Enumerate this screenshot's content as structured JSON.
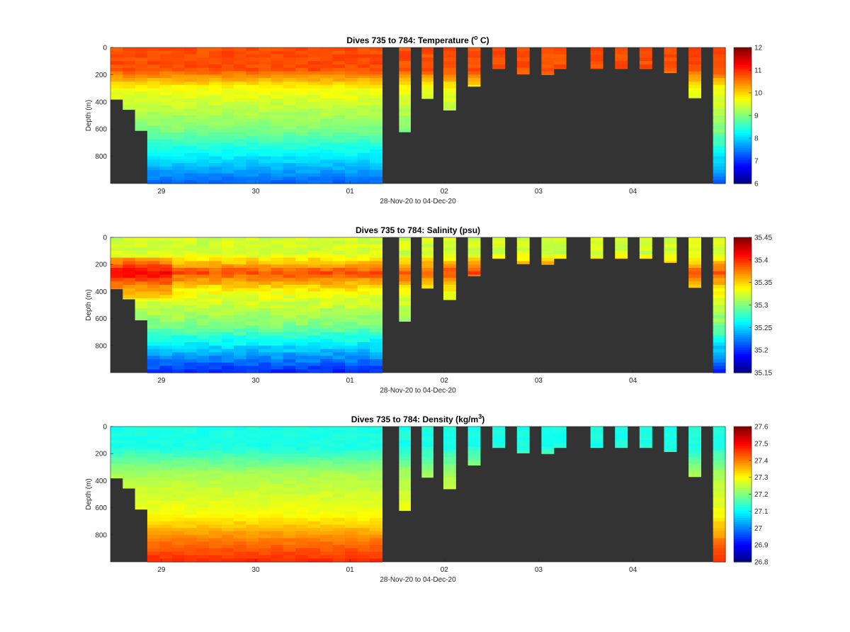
{
  "figure": {
    "background": "#ffffff",
    "no_data_color": "#333333"
  },
  "chart_data": [
    {
      "type": "heatmap",
      "id": "temperature",
      "title_prefix": "Dives 735 to 784: Temperature (",
      "title_sup": "o",
      "title_suffix": " C)",
      "xlabel": "28-Nov-20 to 04-Dec-20",
      "ylabel": "Depth (m)",
      "xlim": [
        -0.54,
        5.98
      ],
      "ylim": [
        1000,
        0
      ],
      "x_ticks": [
        {
          "value": 0,
          "label": "29"
        },
        {
          "value": 1,
          "label": "30"
        },
        {
          "value": 2,
          "label": "01"
        },
        {
          "value": 3,
          "label": "02"
        },
        {
          "value": 4,
          "label": "03"
        },
        {
          "value": 5,
          "label": "04"
        }
      ],
      "y_ticks": [
        {
          "value": 0,
          "label": "0"
        },
        {
          "value": 200,
          "label": "200"
        },
        {
          "value": 400,
          "label": "400"
        },
        {
          "value": 600,
          "label": "600"
        },
        {
          "value": 800,
          "label": "800"
        }
      ],
      "colorbar": {
        "range": [
          6,
          12
        ],
        "ticks": [
          "6",
          "7",
          "8",
          "9",
          "10",
          "11",
          "12"
        ],
        "colormap": "jet"
      },
      "profile_model": "temperature",
      "casts": [
        {
          "start": -0.54,
          "end": -0.41,
          "max_depth": 380
        },
        {
          "start": -0.41,
          "end": -0.28,
          "max_depth": 455
        },
        {
          "start": -0.28,
          "end": -0.15,
          "max_depth": 610
        },
        {
          "start": -0.15,
          "end": 2.34,
          "max_depth": 1000
        },
        {
          "start": 2.52,
          "end": 2.64,
          "max_depth": 620
        },
        {
          "start": 2.76,
          "end": 2.88,
          "max_depth": 375
        },
        {
          "start": 2.99,
          "end": 3.12,
          "max_depth": 460
        },
        {
          "start": 3.25,
          "end": 3.38,
          "max_depth": 285
        },
        {
          "start": 3.51,
          "end": 3.64,
          "max_depth": 155
        },
        {
          "start": 3.77,
          "end": 3.9,
          "max_depth": 195
        },
        {
          "start": 4.03,
          "end": 4.16,
          "max_depth": 200
        },
        {
          "start": 4.16,
          "end": 4.29,
          "max_depth": 155
        },
        {
          "start": 4.55,
          "end": 4.68,
          "max_depth": 155
        },
        {
          "start": 4.81,
          "end": 4.94,
          "max_depth": 155
        },
        {
          "start": 5.07,
          "end": 5.2,
          "max_depth": 155
        },
        {
          "start": 5.33,
          "end": 5.46,
          "max_depth": 185
        },
        {
          "start": 5.59,
          "end": 5.72,
          "max_depth": 370
        },
        {
          "start": 5.85,
          "end": 5.98,
          "max_depth": 1000
        }
      ]
    },
    {
      "type": "heatmap",
      "id": "salinity",
      "title_prefix": "Dives 735 to 784: Salinity (psu)",
      "title_sup": "",
      "title_suffix": "",
      "xlabel": "28-Nov-20 to 04-Dec-20",
      "ylabel": "Depth (m)",
      "xlim": [
        -0.54,
        5.98
      ],
      "ylim": [
        1000,
        0
      ],
      "x_ticks": [
        {
          "value": 0,
          "label": "29"
        },
        {
          "value": 1,
          "label": "30"
        },
        {
          "value": 2,
          "label": "01"
        },
        {
          "value": 3,
          "label": "02"
        },
        {
          "value": 4,
          "label": "03"
        },
        {
          "value": 5,
          "label": "04"
        }
      ],
      "y_ticks": [
        {
          "value": 0,
          "label": "0"
        },
        {
          "value": 200,
          "label": "200"
        },
        {
          "value": 400,
          "label": "400"
        },
        {
          "value": 600,
          "label": "600"
        },
        {
          "value": 800,
          "label": "800"
        }
      ],
      "colorbar": {
        "range": [
          35.15,
          35.45
        ],
        "ticks": [
          "35.15",
          "35.2",
          "35.25",
          "35.3",
          "35.35",
          "35.4",
          "35.45"
        ],
        "colormap": "jet"
      },
      "profile_model": "salinity",
      "casts": [
        {
          "start": -0.54,
          "end": -0.41,
          "max_depth": 380
        },
        {
          "start": -0.41,
          "end": -0.28,
          "max_depth": 455
        },
        {
          "start": -0.28,
          "end": -0.15,
          "max_depth": 610
        },
        {
          "start": -0.15,
          "end": 2.34,
          "max_depth": 1000
        },
        {
          "start": 2.52,
          "end": 2.64,
          "max_depth": 620
        },
        {
          "start": 2.76,
          "end": 2.88,
          "max_depth": 375
        },
        {
          "start": 2.99,
          "end": 3.12,
          "max_depth": 460
        },
        {
          "start": 3.25,
          "end": 3.38,
          "max_depth": 285
        },
        {
          "start": 3.51,
          "end": 3.64,
          "max_depth": 155
        },
        {
          "start": 3.77,
          "end": 3.9,
          "max_depth": 195
        },
        {
          "start": 4.03,
          "end": 4.16,
          "max_depth": 200
        },
        {
          "start": 4.16,
          "end": 4.29,
          "max_depth": 155
        },
        {
          "start": 4.55,
          "end": 4.68,
          "max_depth": 155
        },
        {
          "start": 4.81,
          "end": 4.94,
          "max_depth": 155
        },
        {
          "start": 5.07,
          "end": 5.2,
          "max_depth": 155
        },
        {
          "start": 5.33,
          "end": 5.46,
          "max_depth": 185
        },
        {
          "start": 5.59,
          "end": 5.72,
          "max_depth": 370
        },
        {
          "start": 5.85,
          "end": 5.98,
          "max_depth": 1000
        }
      ]
    },
    {
      "type": "heatmap",
      "id": "density",
      "title_prefix": "Dives 735 to 784: Density (kg/m",
      "title_sup": "3",
      "title_suffix": ")",
      "xlabel": "28-Nov-20 to 04-Dec-20",
      "ylabel": "Depth (m)",
      "xlim": [
        -0.54,
        5.98
      ],
      "ylim": [
        1000,
        0
      ],
      "x_ticks": [
        {
          "value": 0,
          "label": "29"
        },
        {
          "value": 1,
          "label": "30"
        },
        {
          "value": 2,
          "label": "01"
        },
        {
          "value": 3,
          "label": "02"
        },
        {
          "value": 4,
          "label": "03"
        },
        {
          "value": 5,
          "label": "04"
        }
      ],
      "y_ticks": [
        {
          "value": 0,
          "label": "0"
        },
        {
          "value": 200,
          "label": "200"
        },
        {
          "value": 400,
          "label": "400"
        },
        {
          "value": 600,
          "label": "600"
        },
        {
          "value": 800,
          "label": "800"
        }
      ],
      "colorbar": {
        "range": [
          26.8,
          27.6
        ],
        "ticks": [
          "26.8",
          "26.9",
          "27",
          "27.1",
          "27.2",
          "27.3",
          "27.4",
          "27.5",
          "27.6"
        ],
        "colormap": "jet"
      },
      "profile_model": "density",
      "casts": [
        {
          "start": -0.54,
          "end": -0.41,
          "max_depth": 380
        },
        {
          "start": -0.41,
          "end": -0.28,
          "max_depth": 455
        },
        {
          "start": -0.28,
          "end": -0.15,
          "max_depth": 610
        },
        {
          "start": -0.15,
          "end": 2.34,
          "max_depth": 1000
        },
        {
          "start": 2.52,
          "end": 2.64,
          "max_depth": 620
        },
        {
          "start": 2.76,
          "end": 2.88,
          "max_depth": 375
        },
        {
          "start": 2.99,
          "end": 3.12,
          "max_depth": 460
        },
        {
          "start": 3.25,
          "end": 3.38,
          "max_depth": 285
        },
        {
          "start": 3.51,
          "end": 3.64,
          "max_depth": 155
        },
        {
          "start": 3.77,
          "end": 3.9,
          "max_depth": 195
        },
        {
          "start": 4.03,
          "end": 4.16,
          "max_depth": 200
        },
        {
          "start": 4.16,
          "end": 4.29,
          "max_depth": 155
        },
        {
          "start": 4.55,
          "end": 4.68,
          "max_depth": 155
        },
        {
          "start": 4.81,
          "end": 4.94,
          "max_depth": 155
        },
        {
          "start": 5.07,
          "end": 5.2,
          "max_depth": 155
        },
        {
          "start": 5.33,
          "end": 5.46,
          "max_depth": 185
        },
        {
          "start": 5.59,
          "end": 5.72,
          "max_depth": 370
        },
        {
          "start": 5.85,
          "end": 5.98,
          "max_depth": 1000
        }
      ]
    }
  ]
}
